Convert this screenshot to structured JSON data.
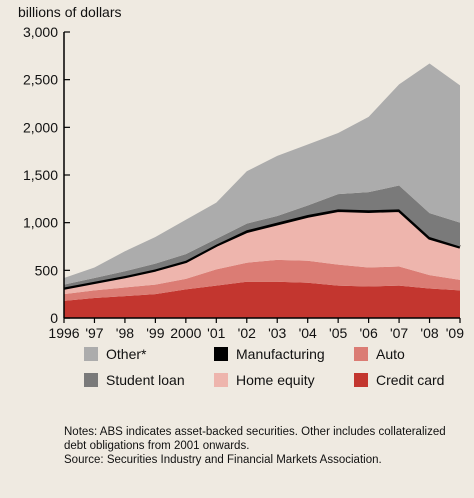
{
  "chart_data": {
    "type": "area",
    "stacked": true,
    "ylabel": "billions of dollars",
    "ylim": [
      0,
      3000
    ],
    "yticks": [
      0,
      500,
      1000,
      1500,
      2000,
      2500,
      3000
    ],
    "ytick_labels": [
      "0",
      "500",
      "1,000",
      "1,500",
      "2,000",
      "2,500",
      "3,000"
    ],
    "x": [
      1996,
      1997,
      1998,
      1999,
      2000,
      2001,
      2002,
      2003,
      2004,
      2005,
      2006,
      2007,
      2008,
      2009
    ],
    "xtick_labels": [
      "1996",
      "'97",
      "'98",
      "'99",
      "2000",
      "'01",
      "'02",
      "'03",
      "'04",
      "'05",
      "'06",
      "'07",
      "'08",
      "'09"
    ],
    "series": [
      {
        "name": "Credit card",
        "color": "#c3362f",
        "values": [
          180,
          210,
          230,
          250,
          300,
          340,
          380,
          380,
          370,
          340,
          330,
          340,
          310,
          290
        ]
      },
      {
        "name": "Auto",
        "color": "#db7c74",
        "values": [
          70,
          80,
          90,
          100,
          110,
          170,
          200,
          230,
          230,
          220,
          200,
          200,
          140,
          110
        ]
      },
      {
        "name": "Home equity",
        "color": "#eeb5ad",
        "values": [
          60,
          80,
          110,
          150,
          180,
          250,
          320,
          370,
          460,
          560,
          580,
          580,
          380,
          340
        ]
      },
      {
        "name": "Manufacturing",
        "color": "#000000",
        "values": [
          10,
          10,
          10,
          10,
          10,
          10,
          20,
          20,
          20,
          20,
          20,
          20,
          20,
          10
        ]
      },
      {
        "name": "Student loan",
        "color": "#7a7a7a",
        "values": [
          30,
          40,
          50,
          60,
          70,
          60,
          70,
          70,
          100,
          160,
          190,
          250,
          250,
          250
        ]
      },
      {
        "name": "Other*",
        "color": "#acacac",
        "values": [
          70,
          110,
          210,
          280,
          360,
          380,
          550,
          630,
          640,
          640,
          790,
          1060,
          1570,
          1440
        ]
      }
    ],
    "legend_order": [
      "Other*",
      "Manufacturing",
      "Auto",
      "Student loan",
      "Home equity",
      "Credit card"
    ],
    "legend_position": "bottom",
    "grid": false
  },
  "notes": {
    "line1": "Notes: ABS indicates asset-backed securities. Other includes collateralized",
    "line2": "debt obligations from 2001 onwards.",
    "line3": "Source: Securities Industry and Financial Markets Association."
  }
}
